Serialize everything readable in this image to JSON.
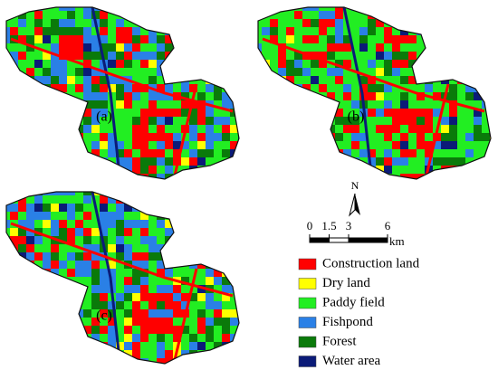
{
  "panels": [
    {
      "label": "(a)"
    },
    {
      "label": "(b)"
    },
    {
      "label": "(c)"
    }
  ],
  "north": "N",
  "scale": {
    "ticks": [
      0,
      1.5,
      3,
      6
    ],
    "unit": "km"
  },
  "legend": [
    {
      "name": "Construction land",
      "color": "#ff0000"
    },
    {
      "name": "Dry land",
      "color": "#ffff00"
    },
    {
      "name": "Paddy field",
      "color": "#22ee22"
    },
    {
      "name": "Fishpond",
      "color": "#2a80e6"
    },
    {
      "name": "Forest",
      "color": "#0a7a0a"
    },
    {
      "name": "Water area",
      "color": "#0b1b78"
    }
  ]
}
